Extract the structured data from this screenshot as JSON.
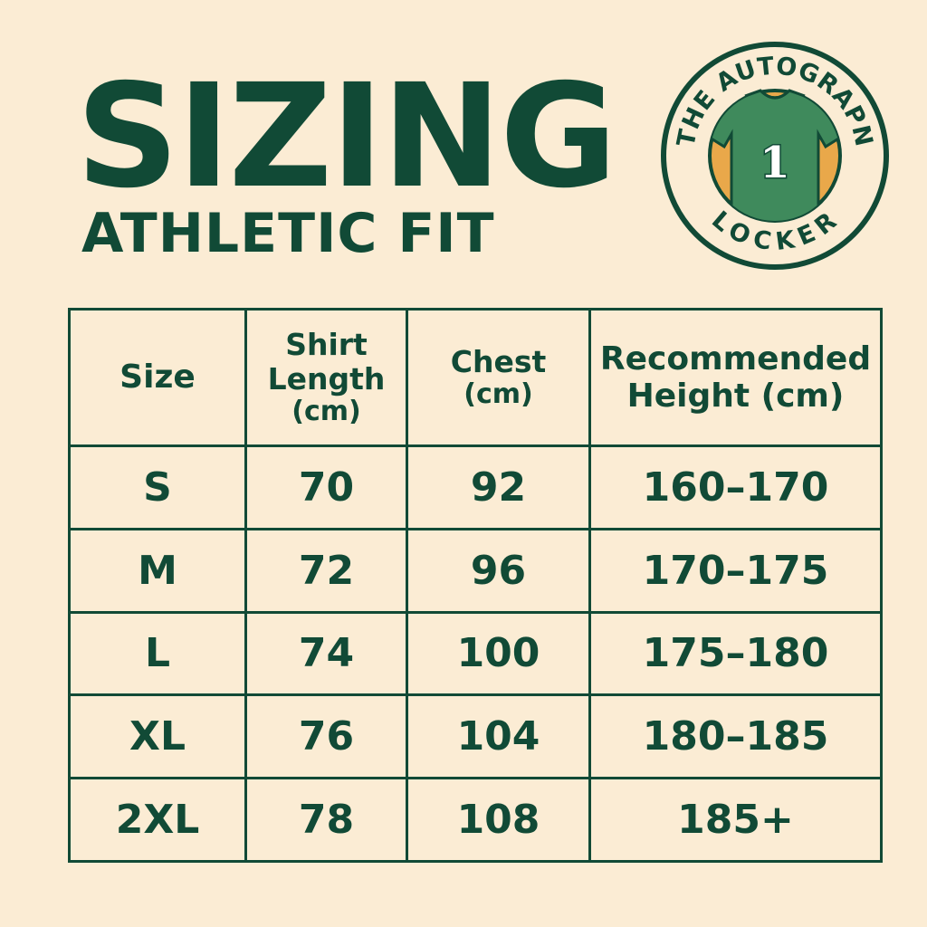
{
  "title": "SIZING",
  "subtitle": "ATHLETIC FIT",
  "logo": {
    "top_text": "THE AUTOGRAPN",
    "bottom_text": "LOCKER",
    "jersey_number": "1",
    "colors": {
      "ring": "#114a36",
      "jersey": "#3f8a5c",
      "accent": "#e9a84a"
    }
  },
  "colors": {
    "background": "#fbecd4",
    "primary": "#114a36"
  },
  "table": {
    "headers": [
      [
        "Size"
      ],
      [
        "Shirt",
        "Length",
        "(cm)"
      ],
      [
        "Chest",
        "(cm)"
      ],
      [
        "Recommended",
        "Height (cm)"
      ]
    ],
    "rows": [
      [
        "S",
        "70",
        "92",
        "160–170"
      ],
      [
        "M",
        "72",
        "96",
        "170–175"
      ],
      [
        "L",
        "74",
        "100",
        "175–180"
      ],
      [
        "XL",
        "76",
        "104",
        "180–185"
      ],
      [
        "2XL",
        "78",
        "108",
        "185+"
      ]
    ]
  }
}
